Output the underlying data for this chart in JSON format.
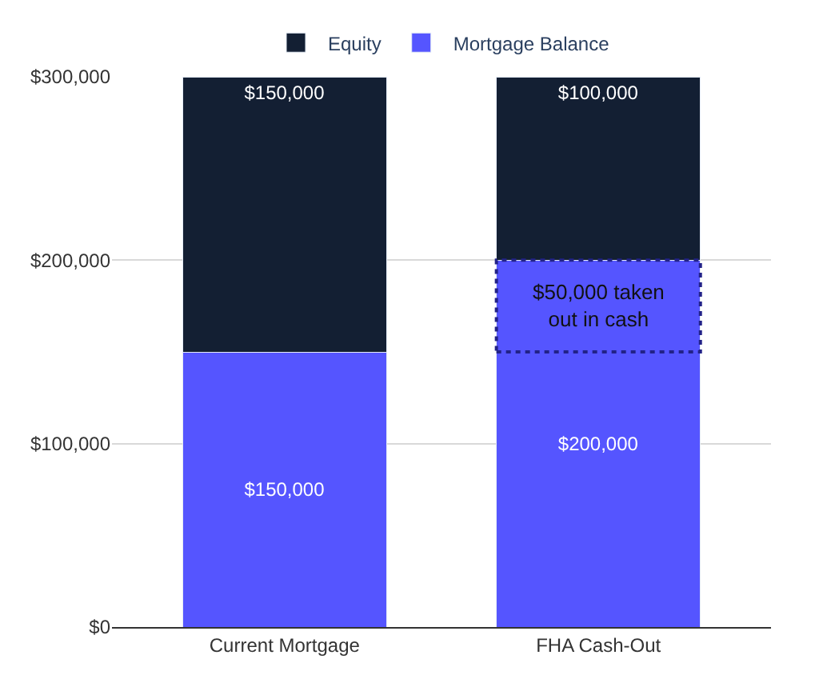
{
  "chart_data": {
    "type": "bar",
    "stacked": true,
    "categories": [
      "Current Mortgage",
      "FHA Cash-Out"
    ],
    "series": [
      {
        "name": "Mortgage Balance",
        "color": "#5555ff",
        "values": [
          150000,
          200000
        ],
        "value_labels": [
          "$150,000",
          "$200,000"
        ]
      },
      {
        "name": "Equity",
        "color": "#131f33",
        "values": [
          150000,
          100000
        ],
        "value_labels": [
          "$150,000",
          "$100,000"
        ]
      }
    ],
    "ylim": [
      0,
      300000
    ],
    "yticks": [
      {
        "value": 0,
        "label": "$0"
      },
      {
        "value": 100000,
        "label": "$100,000"
      },
      {
        "value": 200000,
        "label": "$200,000"
      },
      {
        "value": 300000,
        "label": "$300,000"
      }
    ],
    "grid": "y",
    "legend": "top",
    "annotations": [
      "$50,000 taken out in cash"
    ]
  }
}
